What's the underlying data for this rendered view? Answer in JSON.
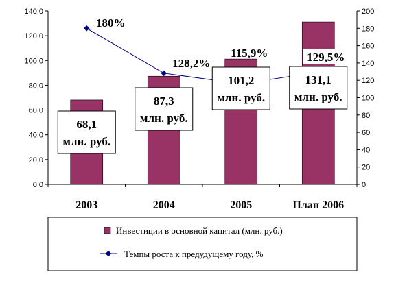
{
  "chart_data": {
    "type": "bar",
    "categories": [
      "2003",
      "2004",
      "2005",
      "План 2006"
    ],
    "series": [
      {
        "name": "Инвестиции в основной капитал (млн. руб.)",
        "values": [
          68.1,
          87.3,
          101.2,
          131.1
        ],
        "color": "#993366",
        "axis": "left"
      },
      {
        "name": "Темпы роста к предудущему году, %",
        "type": "line",
        "values": [
          180,
          128.2,
          115.9,
          129.5
        ],
        "color": "#000080",
        "axis": "right"
      }
    ],
    "value_labels": [
      [
        "68,1",
        "млн. руб."
      ],
      [
        "87,3",
        "млн. руб."
      ],
      [
        "101,2",
        "млн. руб."
      ],
      [
        "131,1",
        "млн. руб."
      ]
    ],
    "percent_labels": [
      "180%",
      "128,2%",
      "115,9%",
      "129,5%"
    ],
    "y_left": {
      "lim": [
        0,
        140
      ],
      "ticks": [
        "0,0",
        "20,0",
        "40,0",
        "60,0",
        "80,0",
        "100,0",
        "120,0",
        "140,0"
      ]
    },
    "y_right": {
      "lim": [
        0,
        200
      ],
      "ticks": [
        "0",
        "20",
        "40",
        "60",
        "80",
        "100",
        "120",
        "140",
        "160",
        "180",
        "200"
      ]
    },
    "legend_position": "bottom",
    "grid": false
  }
}
